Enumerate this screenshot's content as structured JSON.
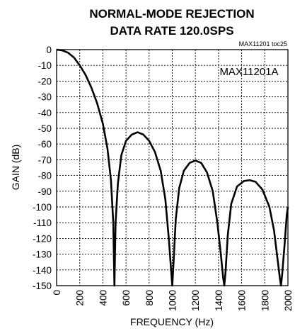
{
  "chart_data": {
    "type": "line",
    "title": [
      "NORMAL-MODE REJECTION",
      "DATA RATE 120.0SPS"
    ],
    "note": "MAX11201 toc25",
    "xlabel": "FREQUENCY (Hz)",
    "ylabel": "GAIN (dB)",
    "xlim": [
      0,
      2000
    ],
    "ylim": [
      -150,
      0
    ],
    "x_ticks": [
      "0",
      "200",
      "400",
      "600",
      "800",
      "1000",
      "1200",
      "1400",
      "1600",
      "1800",
      "2000"
    ],
    "y_ticks": [
      "0",
      "-10",
      "-20",
      "-30",
      "-40",
      "-50",
      "-60",
      "-70",
      "-80",
      "-90",
      "-100",
      "-110",
      "-120",
      "-130",
      "-140",
      "-150"
    ],
    "grid": true,
    "series": [
      {
        "name": "MAX11201A",
        "x": [
          0,
          50,
          100,
          150,
          200,
          250,
          300,
          350,
          400,
          440,
          470,
          490,
          500,
          510,
          530,
          560,
          600,
          650,
          700,
          750,
          800,
          850,
          900,
          940,
          970,
          990,
          1000,
          1010,
          1030,
          1060,
          1100,
          1150,
          1200,
          1250,
          1300,
          1350,
          1390,
          1420,
          1440,
          1450,
          1460,
          1480,
          1510,
          1560,
          1620,
          1670,
          1720,
          1780,
          1840,
          1880,
          1910,
          1930,
          1940,
          1950,
          1970,
          1990,
          2000
        ],
        "y": [
          0,
          -0.5,
          -2,
          -5,
          -10,
          -16,
          -24,
          -34,
          -47,
          -63,
          -83,
          -110,
          -150,
          -110,
          -85,
          -67,
          -58,
          -54,
          -52.5,
          -54,
          -58,
          -65,
          -77,
          -95,
          -120,
          -140,
          -150,
          -137,
          -108,
          -88,
          -77,
          -72,
          -70.5,
          -72,
          -78,
          -90,
          -110,
          -130,
          -145,
          -150,
          -142,
          -118,
          -98,
          -87,
          -83.5,
          -83,
          -84,
          -89,
          -100,
          -115,
          -133,
          -145,
          -150,
          -143,
          -125,
          -105,
          -100
        ]
      }
    ]
  }
}
